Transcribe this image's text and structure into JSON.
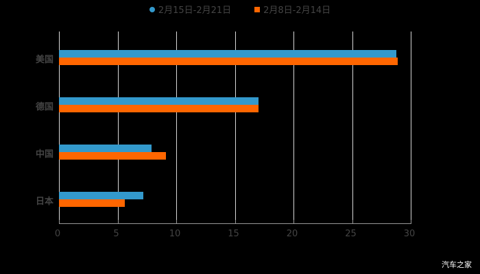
{
  "chart_data": {
    "type": "bar",
    "orientation": "horizontal",
    "title": "",
    "xlabel": "",
    "ylabel": "",
    "xlim": [
      0,
      30
    ],
    "xticks": [
      "0",
      "5",
      "10",
      "15",
      "20",
      "25",
      "30"
    ],
    "grid": true,
    "legend_position": "top",
    "categories": [
      "美国",
      "德国",
      "中国",
      "日本"
    ],
    "series": [
      {
        "name": "2月15日-2月21日",
        "color": "#3399cc",
        "values": [
          28.8,
          17.0,
          7.9,
          7.2
        ]
      },
      {
        "name": "2月8日-2月14日",
        "color": "#ff6600",
        "values": [
          28.9,
          17.0,
          9.1,
          5.6
        ]
      }
    ]
  },
  "legend": {
    "series1": "2月15日-2月21日",
    "series2": "2月8日-2月14日"
  },
  "axis": {
    "x_ticks": [
      "0",
      "5",
      "10",
      "15",
      "20",
      "25",
      "30"
    ]
  },
  "categories": [
    "美国",
    "德国",
    "中国",
    "日本"
  ],
  "watermark": "汽车之家"
}
